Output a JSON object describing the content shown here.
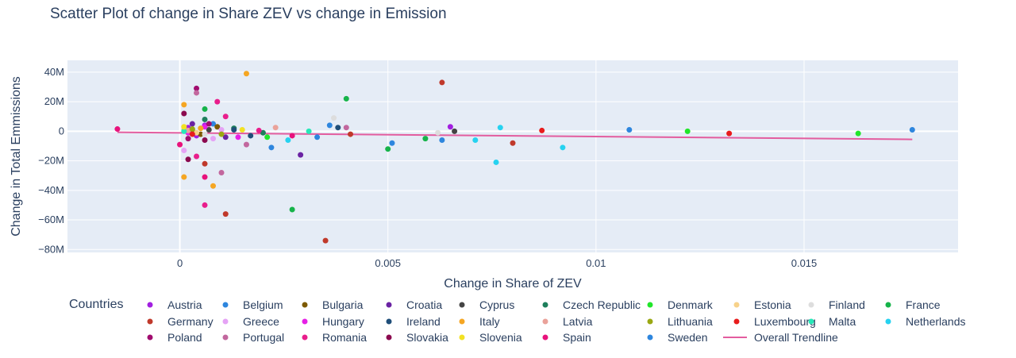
{
  "chart_data": {
    "type": "scatter",
    "title": "Scatter Plot of change in Share ZEV vs change in Emission",
    "xlabel": "Change in Share of ZEV",
    "ylabel": "Change in Total Emmissions",
    "xlim": [
      -0.0027,
      0.0187
    ],
    "ylim": [
      -82000000,
      48000000
    ],
    "x_ticks": [
      0,
      0.005,
      0.01,
      0.015
    ],
    "x_tick_labels": [
      "0",
      "0.005",
      "0.01",
      "0.015"
    ],
    "y_ticks": [
      40000000,
      20000000,
      0,
      -20000000,
      -40000000,
      -60000000,
      -80000000
    ],
    "y_tick_labels": [
      "40M",
      "20M",
      "0",
      "−20M",
      "−40M",
      "−60M",
      "−80M"
    ],
    "grid": true,
    "legend_title": "Countries",
    "legend_position": "bottom",
    "series": [
      {
        "name": "Austria",
        "color": "#a21fe0",
        "points": [
          [
            0.0002,
            2500000
          ],
          [
            0.0004,
            -3000000
          ],
          [
            0.0006,
            4000000
          ],
          [
            0.0065,
            3000000
          ]
        ]
      },
      {
        "name": "Belgium",
        "color": "#2e86de",
        "points": [
          [
            0.0008,
            5000000
          ],
          [
            0.0022,
            -11000000
          ],
          [
            0.0033,
            -4000000
          ],
          [
            0.0108,
            1000000
          ]
        ]
      },
      {
        "name": "Bulgaria",
        "color": "#7d5a00",
        "points": [
          [
            0.0003,
            1000000
          ],
          [
            0.0005,
            -2000000
          ],
          [
            0.0009,
            3000000
          ]
        ]
      },
      {
        "name": "Croatia",
        "color": "#6a23a3",
        "points": [
          [
            0.0003,
            5000000
          ],
          [
            0.0011,
            -4000000
          ],
          [
            0.0029,
            -16000000
          ]
        ]
      },
      {
        "name": "Cyprus",
        "color": "#444444",
        "points": [
          [
            0.0002,
            -1000000
          ],
          [
            0.0007,
            1000000
          ],
          [
            0.0066,
            0
          ]
        ]
      },
      {
        "name": "Czech Republic",
        "color": "#1e7f5c",
        "points": [
          [
            0.0006,
            8000000
          ],
          [
            0.0013,
            2000000
          ],
          [
            0.002,
            -1000000
          ]
        ]
      },
      {
        "name": "Denmark",
        "color": "#21e62a",
        "points": [
          [
            0.0021,
            -4000000
          ],
          [
            0.0122,
            0
          ],
          [
            0.0163,
            -1500000
          ]
        ]
      },
      {
        "name": "Estonia",
        "color": "#f7d28a",
        "points": [
          [
            0.0001,
            1000000
          ],
          [
            0.0004,
            -1000000
          ]
        ]
      },
      {
        "name": "Finland",
        "color": "#dddddd",
        "points": [
          [
            0.0006,
            -2000000
          ],
          [
            0.0037,
            9000000
          ],
          [
            0.0062,
            -1000000
          ]
        ]
      },
      {
        "name": "France",
        "color": "#16b34a",
        "points": [
          [
            0.0006,
            15000000
          ],
          [
            0.004,
            22000000
          ],
          [
            0.0027,
            -53000000
          ],
          [
            0.0059,
            -5000000
          ],
          [
            0.005,
            -12000000
          ]
        ]
      },
      {
        "name": "Germany",
        "color": "#c0392b",
        "points": [
          [
            0.0006,
            -22000000
          ],
          [
            0.0011,
            -56000000
          ],
          [
            0.0035,
            -74000000
          ],
          [
            0.0063,
            33000000
          ],
          [
            0.008,
            -8000000
          ],
          [
            0.0041,
            -2000000
          ]
        ]
      },
      {
        "name": "Greece",
        "color": "#e5a3f5",
        "points": [
          [
            0.0001,
            -13000000
          ],
          [
            0.0008,
            -5000000
          ],
          [
            0.001,
            1000000
          ]
        ]
      },
      {
        "name": "Hungary",
        "color": "#e620e6",
        "points": [
          [
            0.0002,
            -1000000
          ],
          [
            0.0006,
            3000000
          ],
          [
            0.0014,
            -4000000
          ]
        ]
      },
      {
        "name": "Ireland",
        "color": "#1f4e79",
        "points": [
          [
            0.0013,
            1000000
          ],
          [
            0.0017,
            -3000000
          ],
          [
            0.0038,
            2500000
          ]
        ]
      },
      {
        "name": "Italy",
        "color": "#f5a623",
        "points": [
          [
            0.0016,
            39000000
          ],
          [
            0.0001,
            18000000
          ],
          [
            0.0001,
            -31000000
          ],
          [
            0.0008,
            -37000000
          ],
          [
            0.0005,
            2000000
          ]
        ]
      },
      {
        "name": "Latvia",
        "color": "#eaa29a",
        "points": [
          [
            0.0002,
            500000
          ],
          [
            0.0023,
            2500000
          ]
        ]
      },
      {
        "name": "Lithuania",
        "color": "#9aa813",
        "points": [
          [
            0.0003,
            1500000
          ],
          [
            0.001,
            -2000000
          ]
        ]
      },
      {
        "name": "Luxembourg",
        "color": "#e81c1c",
        "points": [
          [
            0.0003,
            -2000000
          ],
          [
            0.0087,
            500000
          ],
          [
            0.0132,
            -1500000
          ]
        ]
      },
      {
        "name": "Malta",
        "color": "#27e8b8",
        "points": [
          [
            0.0001,
            0
          ],
          [
            0.0031,
            0
          ]
        ]
      },
      {
        "name": "Netherlands",
        "color": "#26d2f0",
        "points": [
          [
            0.0071,
            -6000000
          ],
          [
            0.0077,
            2500000
          ],
          [
            0.0076,
            -21000000
          ],
          [
            0.0092,
            -11000000
          ],
          [
            0.0026,
            -6000000
          ]
        ]
      },
      {
        "name": "Poland",
        "color": "#a10c6f",
        "points": [
          [
            0.0004,
            29000000
          ],
          [
            0.0002,
            -5000000
          ],
          [
            0.0007,
            5000000
          ]
        ]
      },
      {
        "name": "Portugal",
        "color": "#c2679e",
        "points": [
          [
            0.0004,
            26000000
          ],
          [
            0.001,
            -28000000
          ],
          [
            0.0016,
            -9000000
          ],
          [
            0.004,
            2500000
          ]
        ]
      },
      {
        "name": "Romania",
        "color": "#e91e8c",
        "points": [
          [
            0.0009,
            20000000
          ],
          [
            0.0011,
            10000000
          ],
          [
            0.0006,
            -50000000
          ],
          [
            0.0004,
            -17000000
          ],
          [
            0.0019,
            500000
          ]
        ]
      },
      {
        "name": "Slovakia",
        "color": "#8b0a4f",
        "points": [
          [
            0.0001,
            12000000
          ],
          [
            0.0006,
            -6000000
          ],
          [
            0.0002,
            -19000000
          ]
        ]
      },
      {
        "name": "Slovenia",
        "color": "#f2e124",
        "points": [
          [
            0.0001,
            3000000
          ],
          [
            0.0015,
            1000000
          ]
        ]
      },
      {
        "name": "Spain",
        "color": "#e8127c",
        "points": [
          [
            -0.0015,
            1500000
          ],
          [
            0.0006,
            -31000000
          ],
          [
            0.0,
            -9000000
          ],
          [
            0.0027,
            -3000000
          ]
        ]
      },
      {
        "name": "Sweden",
        "color": "#2e86de",
        "points": [
          [
            0.0036,
            4000000
          ],
          [
            0.0051,
            -8000000
          ],
          [
            0.0063,
            -6000000
          ],
          [
            0.0176,
            1000000
          ]
        ]
      }
    ],
    "trendline": {
      "name": "Overall Trendline",
      "color": "#e35d9f",
      "x": [
        -0.0015,
        0.0176
      ],
      "y": [
        -700000,
        -5500000
      ]
    }
  }
}
